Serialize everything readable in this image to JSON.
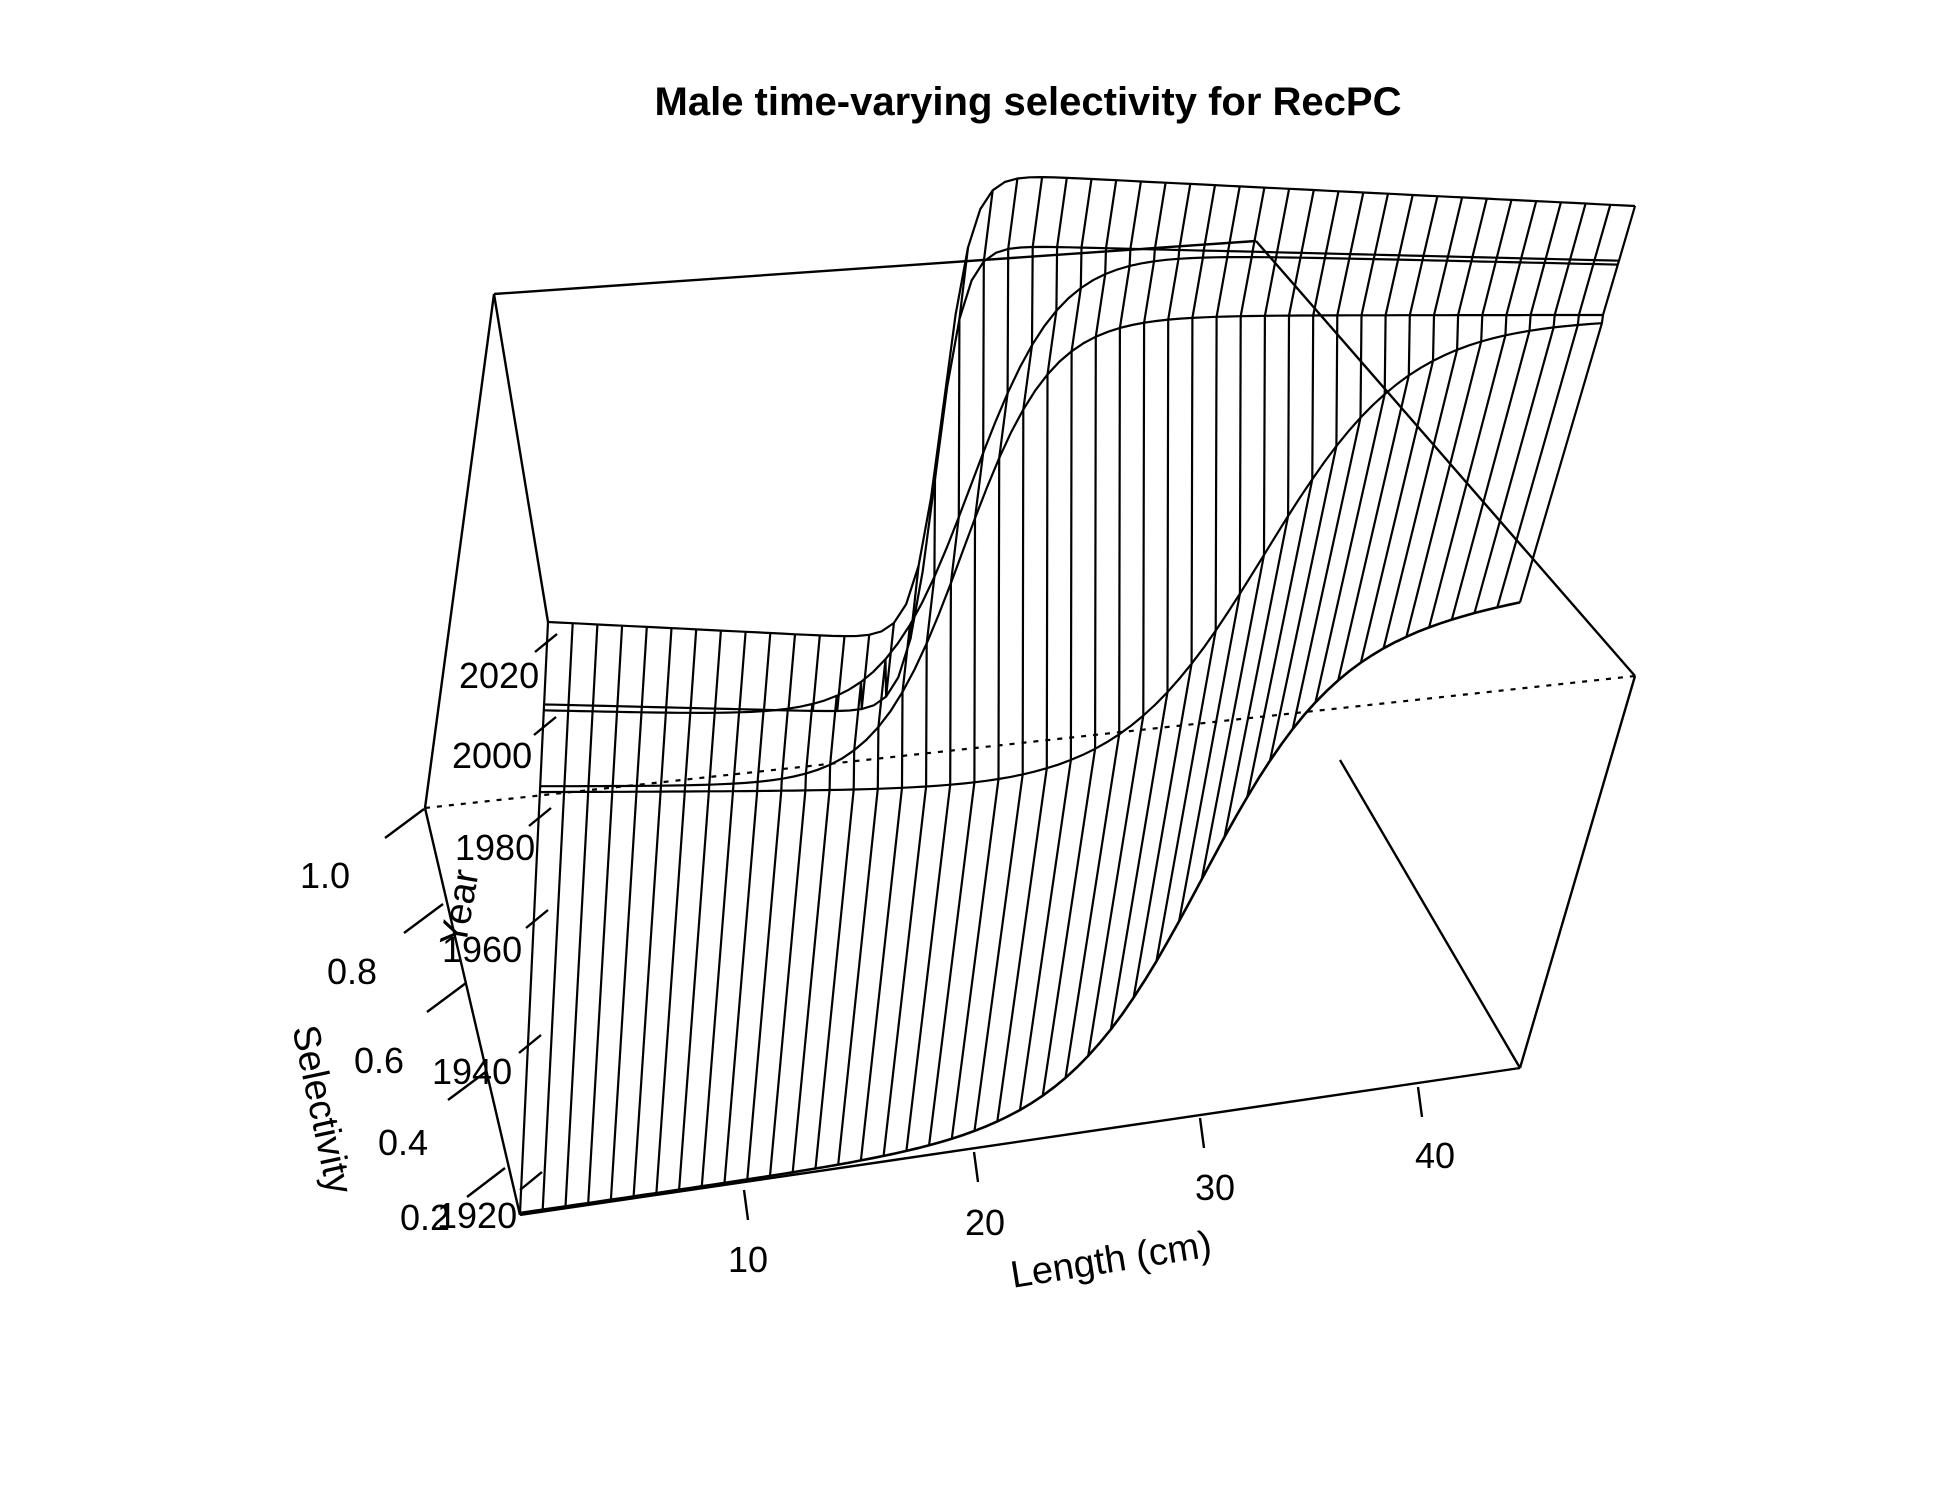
{
  "chart_data": {
    "type": "surface",
    "title": "Male time-varying selectivity for RecPC",
    "xlabel": "Length (cm)",
    "ylabel": "Year",
    "zlabel": "Selectivity",
    "x_ticks": [
      "10",
      "20",
      "30",
      "40"
    ],
    "y_ticks": [
      "1920",
      "1940",
      "1960",
      "1980",
      "2000",
      "2020"
    ],
    "z_ticks": [
      "0.2",
      "0.4",
      "0.6",
      "0.8",
      "1.0"
    ],
    "xlim": [
      1,
      45
    ],
    "ylim": [
      1920,
      2025
    ],
    "zlim": [
      0.2,
      1.0
    ],
    "length_bins": [
      1,
      2,
      3,
      4,
      5,
      6,
      7,
      8,
      9,
      10,
      11,
      12,
      13,
      14,
      15,
      16,
      17,
      18,
      19,
      20,
      21,
      22,
      23,
      24,
      25,
      26,
      27,
      28,
      29,
      30,
      31,
      32,
      33,
      34,
      35,
      36,
      37,
      38,
      39,
      40,
      41,
      42,
      43,
      44,
      45
    ],
    "years": [
      1920,
      1996,
      1997,
      2010,
      2011,
      2025
    ],
    "series": [
      {
        "name": "1920",
        "inflection_cm": 31.0,
        "width_cm": 3.0
      },
      {
        "name": "1996",
        "inflection_cm": 31.0,
        "width_cm": 3.0
      },
      {
        "name": "1997",
        "inflection_cm": 18.5,
        "width_cm": 1.8
      },
      {
        "name": "2010",
        "inflection_cm": 18.5,
        "width_cm": 1.8
      },
      {
        "name": "2011",
        "inflection_cm": 17.0,
        "width_cm": 0.6
      },
      {
        "name": "2025",
        "inflection_cm": 17.0,
        "width_cm": 0.6
      }
    ],
    "grid": false,
    "legend": "none"
  }
}
